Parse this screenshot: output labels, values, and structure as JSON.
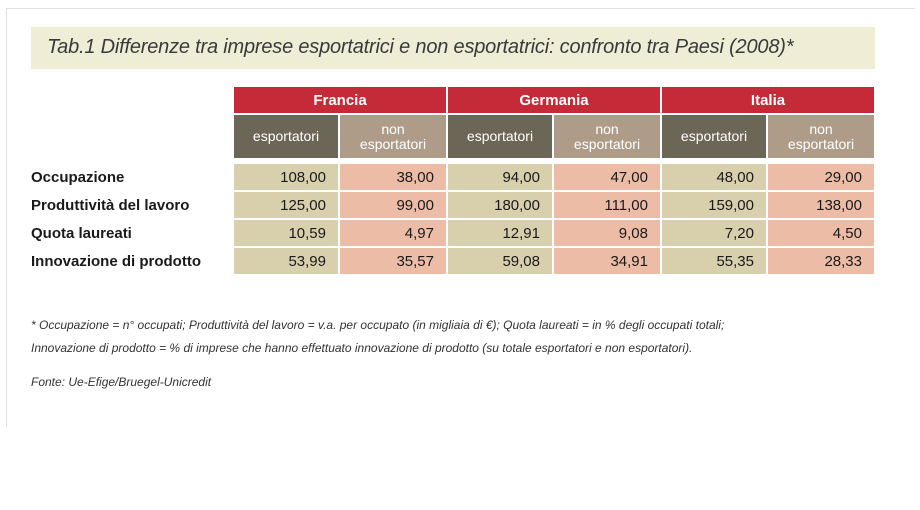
{
  "title": "Tab.1 Differenze tra imprese esportatrici e non esportatrici: confronto tra Paesi (2008)*",
  "countries": [
    "Francia",
    "Germania",
    "Italia"
  ],
  "sub_headers": {
    "exp": "esportatori",
    "non_line1": "non",
    "non_line2": "esportatori"
  },
  "rows": [
    {
      "label": "Occupazione",
      "values": [
        "108,00",
        "38,00",
        "94,00",
        "47,00",
        "48,00",
        "29,00"
      ]
    },
    {
      "label": "Produttività del lavoro",
      "values": [
        "125,00",
        "99,00",
        "180,00",
        "111,00",
        "159,00",
        "138,00"
      ]
    },
    {
      "label": "Quota laureati",
      "values": [
        "10,59",
        "4,97",
        "12,91",
        "9,08",
        "7,20",
        "4,50"
      ]
    },
    {
      "label": "Innovazione di prodotto",
      "values": [
        "53,99",
        "35,57",
        "59,08",
        "34,91",
        "55,35",
        "28,33"
      ]
    }
  ],
  "notes": {
    "line1": "* Occupazione = n° occupati; Produttività del lavoro = v.a. per occupato (in migliaia di €); Quota laureati = in % degli occupati totali;",
    "line2": "Innovazione di prodotto = % di imprese che hanno effettuato innovazione di prodotto (su totale esportatori e non esportatori).",
    "source": "Fonte: Ue-Efige/Bruegel-Unicredit"
  },
  "colors": {
    "country_header": "#c42a38",
    "exp_header": "#6c6656",
    "non_header": "#ae9c88",
    "exp_value": "#d8cfac",
    "non_value": "#edbca6",
    "title_band": "#efedd6"
  }
}
